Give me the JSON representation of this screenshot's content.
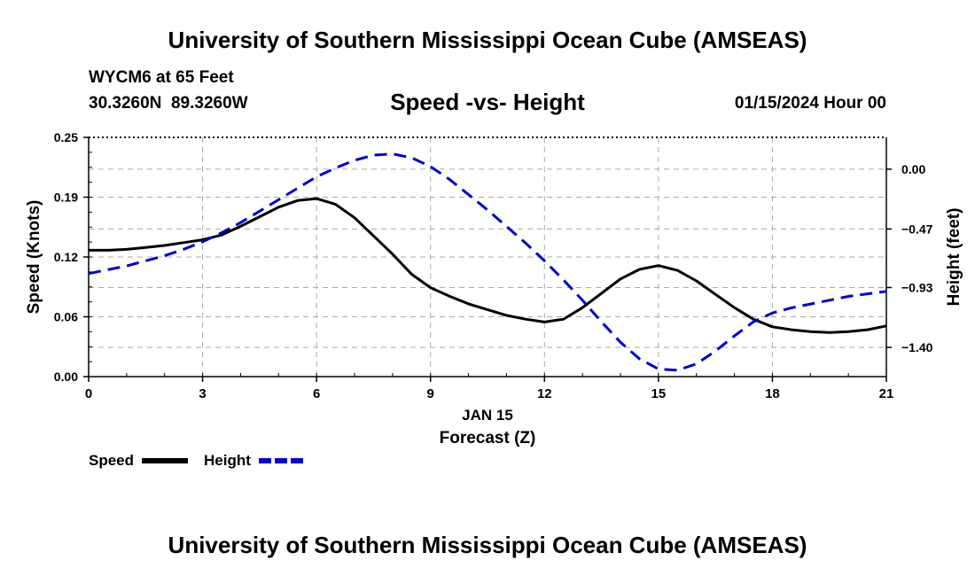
{
  "page": {
    "title_top": "University of Southern Mississippi Ocean Cube (AMSEAS)",
    "title_bottom": "University of Southern Mississippi Ocean Cube (AMSEAS)",
    "station": "WYCM6 at 65 Feet",
    "coords": "30.3260N  89.3260W",
    "date": "01/15/2024 Hour 00"
  },
  "colors": {
    "speed": "#000000",
    "height": "#0000cc",
    "grid": "#aaaaaa"
  },
  "chart_data": {
    "type": "line",
    "title": "Speed -vs- Height",
    "xlabel_date": "JAN 15",
    "xlabel": "Forecast (Z)",
    "ylabel_left": "Speed (Knots)",
    "ylabel_right": "Height (feet)",
    "xlim": [
      0,
      21
    ],
    "x_ticks": [
      0,
      3,
      6,
      9,
      12,
      15,
      18,
      21
    ],
    "x_tick_labels": [
      "0",
      "3",
      "6",
      "9",
      "12",
      "15",
      "18",
      "21"
    ],
    "ylim_left": [
      0,
      0.25
    ],
    "y_left_ticks": [
      0,
      0.0625,
      0.125,
      0.1875,
      0.25
    ],
    "y_left_tick_labels": [
      "0.00",
      "0.06",
      "0.12",
      "0.19",
      "0.25"
    ],
    "ylim_right": [
      -1.63,
      0.25
    ],
    "y_right_ticks": [
      -1.4,
      -0.93,
      -0.47,
      0.0
    ],
    "y_right_tick_labels": [
      "−1.40",
      "−0.93",
      "−0.47",
      "0.00"
    ],
    "legend": [
      "Speed",
      "Height"
    ],
    "series": [
      {
        "name": "Speed",
        "style": "solid",
        "x": [
          0,
          0.5,
          1,
          1.5,
          2,
          2.5,
          3,
          3.5,
          4,
          4.5,
          5,
          5.5,
          6,
          6.5,
          7,
          7.5,
          8,
          8.5,
          9,
          9.5,
          10,
          10.5,
          11,
          11.5,
          12,
          12.5,
          13,
          13.5,
          14,
          14.5,
          15,
          15.5,
          16,
          16.5,
          17,
          17.5,
          18,
          18.5,
          19,
          19.5,
          20,
          20.5,
          21
        ],
        "values": [
          0.132,
          0.132,
          0.133,
          0.135,
          0.137,
          0.14,
          0.143,
          0.148,
          0.157,
          0.167,
          0.177,
          0.184,
          0.186,
          0.18,
          0.166,
          0.147,
          0.128,
          0.107,
          0.093,
          0.084,
          0.076,
          0.07,
          0.064,
          0.06,
          0.057,
          0.06,
          0.072,
          0.087,
          0.102,
          0.112,
          0.116,
          0.111,
          0.1,
          0.086,
          0.072,
          0.06,
          0.052,
          0.049,
          0.047,
          0.046,
          0.047,
          0.049,
          0.053
        ]
      },
      {
        "name": "Height",
        "style": "dashed",
        "x": [
          0,
          0.5,
          1,
          1.5,
          2,
          2.5,
          3,
          3.5,
          4,
          4.5,
          5,
          5.5,
          6,
          6.5,
          7,
          7.5,
          8,
          8.5,
          9,
          9.5,
          10,
          10.5,
          11,
          11.5,
          12,
          12.5,
          13,
          13.5,
          14,
          14.5,
          15,
          15.5,
          16,
          16.5,
          17,
          17.5,
          18,
          18.5,
          19,
          19.5,
          20,
          20.5,
          21
        ],
        "values": [
          -0.82,
          -0.79,
          -0.76,
          -0.72,
          -0.68,
          -0.63,
          -0.57,
          -0.5,
          -0.42,
          -0.33,
          -0.24,
          -0.15,
          -0.06,
          0.01,
          0.07,
          0.11,
          0.12,
          0.09,
          0.02,
          -0.08,
          -0.2,
          -0.32,
          -0.45,
          -0.58,
          -0.72,
          -0.87,
          -1.03,
          -1.2,
          -1.36,
          -1.49,
          -1.57,
          -1.58,
          -1.53,
          -1.43,
          -1.31,
          -1.2,
          -1.13,
          -1.09,
          -1.06,
          -1.03,
          -1.0,
          -0.98,
          -0.96
        ]
      }
    ]
  }
}
